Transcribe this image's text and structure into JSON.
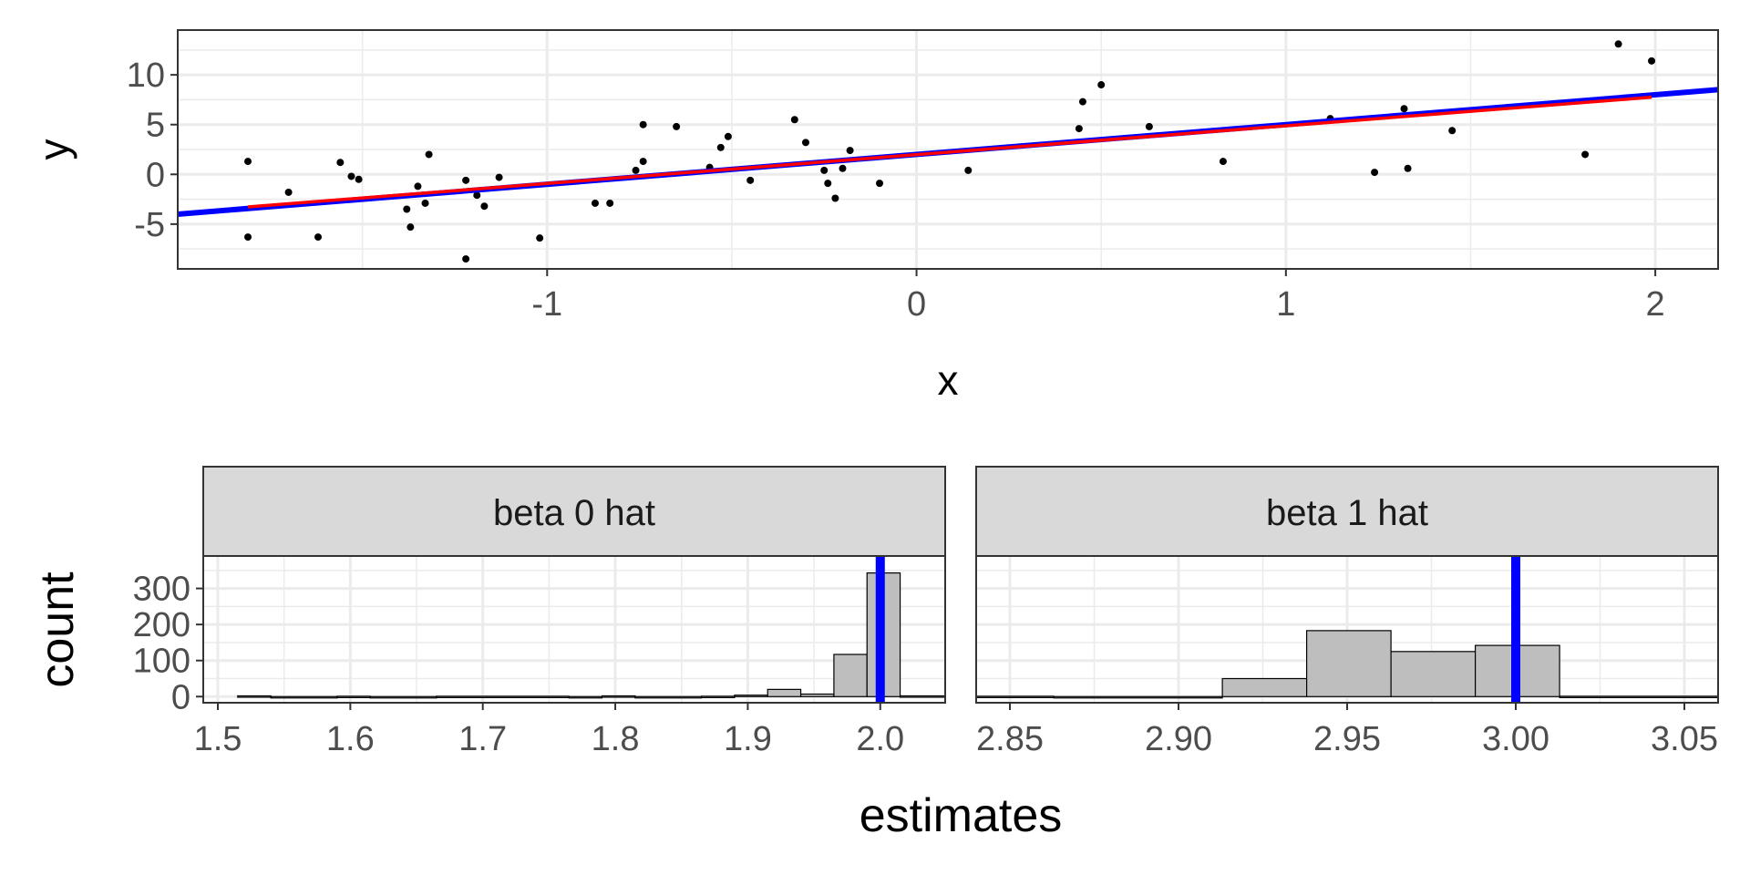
{
  "colors": {
    "fit_line": "#0000ff",
    "ls_line": "#ff0000",
    "true_value_line": "#0000ff",
    "bars": "#bebebe",
    "points": "#000000"
  },
  "chart_data": [
    {
      "type": "scatter",
      "xlabel": "x",
      "ylabel": "y",
      "xlim": [
        -2.0,
        2.17
      ],
      "ylim": [
        -9.5,
        14.5
      ],
      "xticks": [
        -1,
        0,
        1,
        2
      ],
      "xtick_labels": [
        "-1",
        "0",
        "1",
        "2"
      ],
      "yticks": [
        -5,
        0,
        5,
        10
      ],
      "ytick_labels": [
        "-5",
        "0",
        "5",
        "10"
      ],
      "points": [
        [
          -1.81,
          1.3
        ],
        [
          -1.81,
          -6.3
        ],
        [
          -1.7,
          -1.8
        ],
        [
          -1.62,
          -6.3
        ],
        [
          -1.56,
          1.2
        ],
        [
          -1.53,
          -0.2
        ],
        [
          -1.51,
          -0.5
        ],
        [
          -1.38,
          -3.5
        ],
        [
          -1.37,
          -5.3
        ],
        [
          -1.35,
          -1.2
        ],
        [
          -1.33,
          -2.9
        ],
        [
          -1.32,
          2.0
        ],
        [
          -1.22,
          -0.6
        ],
        [
          -1.22,
          -8.5
        ],
        [
          -1.19,
          -2.1
        ],
        [
          -1.17,
          -3.2
        ],
        [
          -1.13,
          -0.3
        ],
        [
          -1.02,
          -6.4
        ],
        [
          -0.87,
          -2.9
        ],
        [
          -0.83,
          -2.9
        ],
        [
          -0.76,
          0.4
        ],
        [
          -0.74,
          1.3
        ],
        [
          -0.74,
          5.0
        ],
        [
          -0.65,
          4.8
        ],
        [
          -0.56,
          0.7
        ],
        [
          -0.53,
          2.7
        ],
        [
          -0.51,
          3.8
        ],
        [
          -0.45,
          -0.6
        ],
        [
          -0.33,
          5.5
        ],
        [
          -0.3,
          3.2
        ],
        [
          -0.25,
          0.4
        ],
        [
          -0.24,
          -0.9
        ],
        [
          -0.22,
          -2.4
        ],
        [
          -0.2,
          0.6
        ],
        [
          -0.18,
          2.4
        ],
        [
          -0.1,
          -0.9
        ],
        [
          0.14,
          0.4
        ],
        [
          0.44,
          4.6
        ],
        [
          0.45,
          7.3
        ],
        [
          0.5,
          9.0
        ],
        [
          0.63,
          4.8
        ],
        [
          0.83,
          1.3
        ],
        [
          1.12,
          5.6
        ],
        [
          1.24,
          0.2
        ],
        [
          1.32,
          6.6
        ],
        [
          1.33,
          0.6
        ],
        [
          1.45,
          4.4
        ],
        [
          1.81,
          2.0
        ],
        [
          1.9,
          13.1
        ],
        [
          1.99,
          11.4
        ]
      ],
      "fit_line": {
        "intercept": 2.0,
        "slope": 3.0,
        "x_range": [
          -2.0,
          2.17
        ]
      },
      "ls_line": {
        "intercept": 1.98,
        "slope": 2.9,
        "x_range": [
          -1.81,
          1.99
        ]
      }
    },
    {
      "type": "bar",
      "panel_title": "beta 0 hat",
      "xlim": [
        1.489,
        2.049
      ],
      "ylim": [
        -17,
        390
      ],
      "xticks": [
        1.5,
        1.6,
        1.7,
        1.8,
        1.9,
        2.0
      ],
      "xtick_labels": [
        "1.5",
        "1.6",
        "1.7",
        "1.8",
        "1.9",
        "2.0"
      ],
      "yticks": [
        0,
        100,
        200,
        300
      ],
      "ytick_labels": [
        "0",
        "100",
        "200",
        "300"
      ],
      "reference_value": 2.0,
      "bins": [
        [
          1.515,
          1.54,
          2
        ],
        [
          1.54,
          1.59,
          0
        ],
        [
          1.59,
          1.615,
          1
        ],
        [
          1.615,
          1.665,
          0
        ],
        [
          1.665,
          1.765,
          1
        ],
        [
          1.765,
          1.79,
          0
        ],
        [
          1.79,
          1.815,
          2
        ],
        [
          1.815,
          1.865,
          0
        ],
        [
          1.865,
          1.89,
          1
        ],
        [
          1.89,
          1.915,
          4
        ],
        [
          1.915,
          1.94,
          20
        ],
        [
          1.94,
          1.965,
          7
        ],
        [
          1.965,
          1.99,
          117
        ],
        [
          1.99,
          2.015,
          343
        ],
        [
          2.015,
          2.049,
          2
        ]
      ]
    },
    {
      "type": "bar",
      "panel_title": "beta 1 hat",
      "xlim": [
        2.84,
        3.06
      ],
      "ylim": [
        -17,
        390
      ],
      "xticks": [
        2.85,
        2.9,
        2.95,
        3.0,
        3.05
      ],
      "xtick_labels": [
        "2.85",
        "2.90",
        "2.95",
        "3.00",
        "3.05"
      ],
      "yticks": [
        0,
        100,
        200,
        300
      ],
      "ytick_labels": [
        "0",
        "100",
        "200",
        "300"
      ],
      "reference_value": 3.0,
      "bins": [
        [
          2.84,
          2.863,
          1
        ],
        [
          2.863,
          2.913,
          0
        ],
        [
          2.913,
          2.938,
          50
        ],
        [
          2.938,
          2.963,
          183
        ],
        [
          2.963,
          2.988,
          125
        ],
        [
          2.988,
          3.013,
          142
        ],
        [
          3.013,
          3.06,
          1
        ]
      ]
    }
  ],
  "histogram_axes": {
    "xlabel": "estimates",
    "ylabel": "count"
  }
}
